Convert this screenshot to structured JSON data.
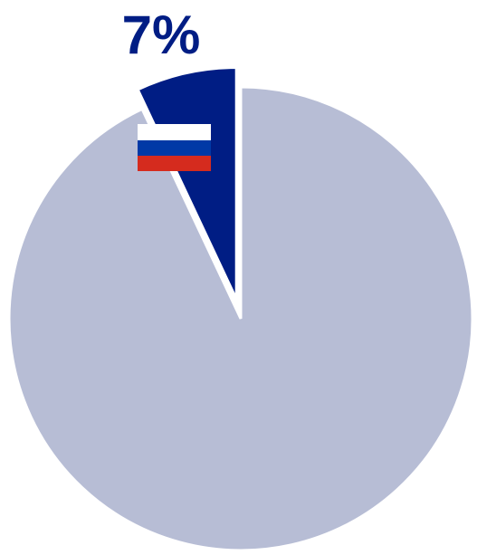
{
  "chart_data": {
    "type": "pie",
    "slices": [
      {
        "value": 7,
        "label": "7%",
        "flag": "russia-flag",
        "color": "#001d84",
        "exploded": true
      },
      {
        "value": 93,
        "label": "",
        "color": "#b7bdd5",
        "exploded": false
      }
    ],
    "title": "",
    "legend": "none"
  },
  "colors": {
    "flag_white": "#ffffff",
    "flag_blue": "#0039a6",
    "flag_red": "#d52b1e"
  }
}
